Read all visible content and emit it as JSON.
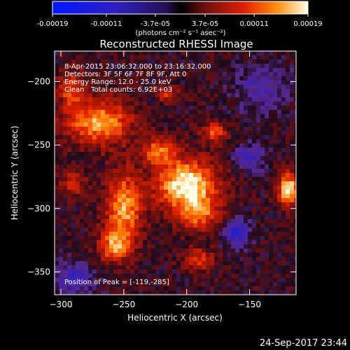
{
  "chart_data": {
    "type": "heatmap",
    "title": "Reconstructed RHESSI Image",
    "xlabel": "Heliocentric X (arcsec)",
    "ylabel": "Heliocentric Y (arcsec)",
    "xlim": [
      -305,
      -113
    ],
    "ylim": [
      -368,
      -176
    ],
    "x_ticks": [
      -300,
      -250,
      -200,
      -150
    ],
    "y_ticks": [
      -350,
      -300,
      -250,
      -200
    ],
    "colorbar": {
      "ticks": [
        "-0.00019",
        "-0.00011",
        "-3.7e-05",
        "3.7e-05",
        "0.00011",
        "0.00019"
      ],
      "tick_values": [
        -0.00019,
        -0.00011,
        -3.7e-05,
        3.7e-05,
        0.00011,
        0.00019
      ],
      "range": [
        -0.00019,
        0.00019
      ],
      "units_line": "(photons cm⁻² s⁻¹ asec⁻²)"
    },
    "annotations": {
      "time": "8-Apr-2015 23:06:32.000 to 23:16:32.000",
      "detectors": "Detectors: 3F 5F 6F 7F 8F 9F, Att 0",
      "energy": "Energy Range: 12.0 - 25.0 keV",
      "method": "Clean",
      "total_counts": "Total counts: 6.92E+03",
      "peak": "Position of Peak = [-119,-285]"
    },
    "peak_position": [
      -119,
      -285
    ],
    "sources": [
      {
        "x": -200,
        "y": -282,
        "rx": 24,
        "ry": 20,
        "amp": 1.0
      },
      {
        "x": -190,
        "y": -305,
        "rx": 14,
        "ry": 12,
        "amp": 0.55
      },
      {
        "x": -119,
        "y": -285,
        "rx": 8,
        "ry": 12,
        "amp": 1.0
      },
      {
        "x": -270,
        "y": -232,
        "rx": 26,
        "ry": 18,
        "amp": 0.75
      },
      {
        "x": -222,
        "y": -255,
        "rx": 14,
        "ry": 10,
        "amp": 0.6
      },
      {
        "x": -250,
        "y": -300,
        "rx": 14,
        "ry": 28,
        "amp": 0.75
      },
      {
        "x": -258,
        "y": -330,
        "rx": 12,
        "ry": 12,
        "amp": 0.6
      },
      {
        "x": -190,
        "y": -340,
        "rx": 12,
        "ry": 9,
        "amp": 0.45
      },
      {
        "x": -292,
        "y": -205,
        "rx": 10,
        "ry": 14,
        "amp": 0.5
      },
      {
        "x": -215,
        "y": -210,
        "rx": 9,
        "ry": 6,
        "amp": 0.4
      },
      {
        "x": -178,
        "y": -240,
        "rx": 10,
        "ry": 8,
        "amp": 0.55
      },
      {
        "x": -290,
        "y": -280,
        "rx": 10,
        "ry": 10,
        "amp": 0.4
      },
      {
        "x": -160,
        "y": -320,
        "rx": 10,
        "ry": 10,
        "amp": -0.6
      },
      {
        "x": -290,
        "y": -355,
        "rx": 16,
        "ry": 12,
        "amp": -0.45
      },
      {
        "x": -140,
        "y": -205,
        "rx": 22,
        "ry": 18,
        "amp": -0.35
      },
      {
        "x": -150,
        "y": -260,
        "rx": 12,
        "ry": 10,
        "amp": -0.45
      }
    ]
  },
  "footer": {
    "date": "24-Sep-2017 23:44"
  }
}
